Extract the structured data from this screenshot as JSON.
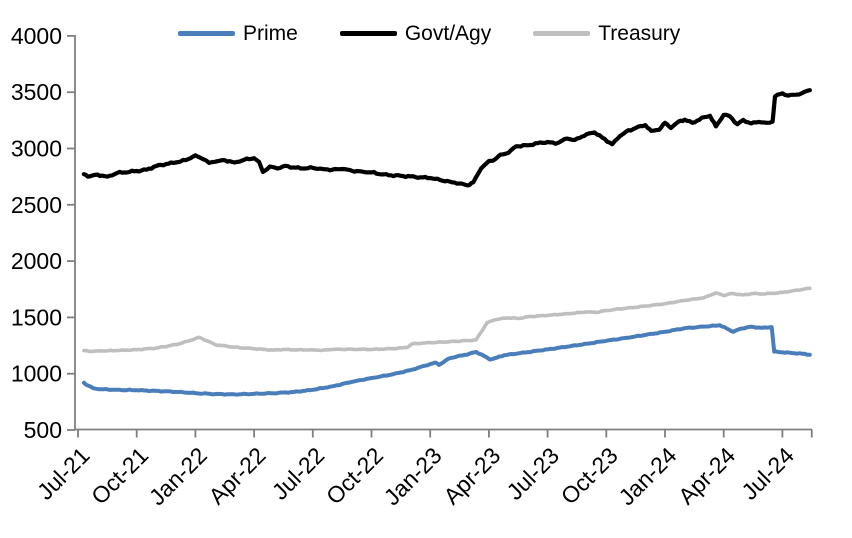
{
  "chart_data": {
    "type": "line",
    "title": "",
    "legend": {
      "position": "top",
      "entries": [
        "Prime",
        "Govt/Agy",
        "Treasury"
      ]
    },
    "x_axis": {
      "label": "",
      "x_unit": "months since Jul-21",
      "tick_labels": [
        "Jul-21",
        "Oct-21",
        "Jan-22",
        "Apr-22",
        "Jul-22",
        "Oct-22",
        "Jan-23",
        "Apr-23",
        "Jul-23",
        "Oct-23",
        "Jan-24",
        "Apr-24",
        "Jul-24"
      ],
      "tick_months": [
        0,
        3,
        6,
        9,
        12,
        15,
        18,
        21,
        24,
        27,
        30,
        33,
        36
      ],
      "end_tick_month": 37.5,
      "label_rotation_deg": -45
    },
    "y_axis": {
      "label": "",
      "min": 500,
      "max": 4000,
      "tick_step": 500,
      "ticks": [
        500,
        1000,
        1500,
        2000,
        2500,
        3000,
        3500,
        4000
      ]
    },
    "colors": {
      "axis": "#7f7f7f",
      "text": "#000000",
      "background": "#ffffff"
    },
    "series": [
      {
        "name": "Prime",
        "color": "#4a7ebb",
        "points": [
          [
            0.3,
            920
          ],
          [
            0.5,
            895
          ],
          [
            0.8,
            870
          ],
          [
            1.2,
            862
          ],
          [
            2,
            857
          ],
          [
            3,
            853
          ],
          [
            4,
            847
          ],
          [
            5,
            839
          ],
          [
            6,
            827
          ],
          [
            7,
            819
          ],
          [
            8,
            816
          ],
          [
            9,
            821
          ],
          [
            10,
            827
          ],
          [
            11,
            837
          ],
          [
            12,
            857
          ],
          [
            13,
            888
          ],
          [
            14,
            927
          ],
          [
            15,
            962
          ],
          [
            16,
            991
          ],
          [
            17,
            1032
          ],
          [
            18,
            1085
          ],
          [
            18.3,
            1098
          ],
          [
            18.45,
            1078
          ],
          [
            19,
            1138
          ],
          [
            20,
            1177
          ],
          [
            20.35,
            1193
          ],
          [
            20.75,
            1158
          ],
          [
            21.05,
            1125
          ],
          [
            21.4,
            1142
          ],
          [
            21.8,
            1165
          ],
          [
            22.5,
            1180
          ],
          [
            23,
            1192
          ],
          [
            24,
            1216
          ],
          [
            25,
            1240
          ],
          [
            26,
            1266
          ],
          [
            27,
            1292
          ],
          [
            28,
            1318
          ],
          [
            29,
            1344
          ],
          [
            30,
            1372
          ],
          [
            31,
            1404
          ],
          [
            32,
            1418
          ],
          [
            32.8,
            1430
          ],
          [
            33.5,
            1372
          ],
          [
            33.8,
            1396
          ],
          [
            34.3,
            1416
          ],
          [
            35,
            1408
          ],
          [
            35.45,
            1414
          ],
          [
            35.58,
            1196
          ],
          [
            36,
            1190
          ],
          [
            36.6,
            1182
          ],
          [
            37,
            1178
          ],
          [
            37.4,
            1168
          ]
        ]
      },
      {
        "name": "Govt/Agy",
        "color": "#000000",
        "points": [
          [
            0.3,
            2772
          ],
          [
            0.6,
            2752
          ],
          [
            1,
            2768
          ],
          [
            1.5,
            2750
          ],
          [
            2,
            2782
          ],
          [
            3,
            2800
          ],
          [
            3.5,
            2812
          ],
          [
            4,
            2845
          ],
          [
            4.5,
            2862
          ],
          [
            5,
            2876
          ],
          [
            5.5,
            2896
          ],
          [
            6,
            2940
          ],
          [
            6.4,
            2905
          ],
          [
            6.7,
            2872
          ],
          [
            7,
            2882
          ],
          [
            7.5,
            2896
          ],
          [
            8,
            2876
          ],
          [
            8.5,
            2900
          ],
          [
            9,
            2914
          ],
          [
            9.25,
            2882
          ],
          [
            9.45,
            2792
          ],
          [
            9.8,
            2840
          ],
          [
            10.2,
            2822
          ],
          [
            10.6,
            2846
          ],
          [
            11,
            2832
          ],
          [
            11.5,
            2822
          ],
          [
            12,
            2828
          ],
          [
            12.5,
            2818
          ],
          [
            13,
            2812
          ],
          [
            13.5,
            2818
          ],
          [
            14,
            2802
          ],
          [
            14.5,
            2796
          ],
          [
            15,
            2788
          ],
          [
            15.5,
            2770
          ],
          [
            16,
            2762
          ],
          [
            16.5,
            2757
          ],
          [
            17,
            2752
          ],
          [
            17.5,
            2744
          ],
          [
            18,
            2738
          ],
          [
            18.5,
            2720
          ],
          [
            19,
            2706
          ],
          [
            19.5,
            2690
          ],
          [
            19.9,
            2672
          ],
          [
            20.2,
            2700
          ],
          [
            20.6,
            2822
          ],
          [
            21,
            2888
          ],
          [
            21.3,
            2902
          ],
          [
            21.6,
            2946
          ],
          [
            22,
            2962
          ],
          [
            22.4,
            3020
          ],
          [
            23,
            3028
          ],
          [
            23.5,
            3048
          ],
          [
            24,
            3058
          ],
          [
            24.4,
            3042
          ],
          [
            25,
            3088
          ],
          [
            25.4,
            3076
          ],
          [
            26,
            3128
          ],
          [
            26.4,
            3142
          ],
          [
            26.8,
            3096
          ],
          [
            27.3,
            3038
          ],
          [
            27.7,
            3110
          ],
          [
            28,
            3148
          ],
          [
            28.5,
            3182
          ],
          [
            29,
            3208
          ],
          [
            29.3,
            3156
          ],
          [
            29.7,
            3166
          ],
          [
            30,
            3228
          ],
          [
            30.3,
            3182
          ],
          [
            30.7,
            3240
          ],
          [
            31,
            3256
          ],
          [
            31.4,
            3228
          ],
          [
            32,
            3278
          ],
          [
            32.3,
            3290
          ],
          [
            32.6,
            3196
          ],
          [
            33,
            3298
          ],
          [
            33.3,
            3288
          ],
          [
            33.7,
            3216
          ],
          [
            34,
            3254
          ],
          [
            34.4,
            3222
          ],
          [
            34.8,
            3236
          ],
          [
            35.2,
            3228
          ],
          [
            35.5,
            3238
          ],
          [
            35.62,
            3462
          ],
          [
            36,
            3490
          ],
          [
            36.3,
            3470
          ],
          [
            36.7,
            3478
          ],
          [
            37,
            3492
          ],
          [
            37.4,
            3518
          ]
        ]
      },
      {
        "name": "Treasury",
        "color": "#bfbfbf",
        "points": [
          [
            0.3,
            1205
          ],
          [
            0.7,
            1198
          ],
          [
            1.2,
            1202
          ],
          [
            2,
            1206
          ],
          [
            3,
            1213
          ],
          [
            4,
            1228
          ],
          [
            5,
            1258
          ],
          [
            5.6,
            1288
          ],
          [
            6,
            1312
          ],
          [
            6.2,
            1322
          ],
          [
            6.6,
            1292
          ],
          [
            7,
            1258
          ],
          [
            8,
            1235
          ],
          [
            9,
            1222
          ],
          [
            9.5,
            1215
          ],
          [
            10,
            1210
          ],
          [
            10.5,
            1216
          ],
          [
            11,
            1211
          ],
          [
            12,
            1212
          ],
          [
            12.5,
            1208
          ],
          [
            13,
            1215
          ],
          [
            14,
            1218
          ],
          [
            15,
            1215
          ],
          [
            16,
            1222
          ],
          [
            16.8,
            1232
          ],
          [
            17.1,
            1266
          ],
          [
            18,
            1275
          ],
          [
            19,
            1285
          ],
          [
            20,
            1295
          ],
          [
            20.35,
            1300
          ],
          [
            20.9,
            1452
          ],
          [
            21.3,
            1478
          ],
          [
            21.7,
            1492
          ],
          [
            22,
            1496
          ],
          [
            22.5,
            1490
          ],
          [
            23,
            1506
          ],
          [
            24,
            1518
          ],
          [
            25,
            1533
          ],
          [
            26,
            1548
          ],
          [
            26.5,
            1544
          ],
          [
            27,
            1562
          ],
          [
            28,
            1581
          ],
          [
            29,
            1600
          ],
          [
            30,
            1622
          ],
          [
            31,
            1650
          ],
          [
            32,
            1676
          ],
          [
            32.6,
            1718
          ],
          [
            33,
            1694
          ],
          [
            33.4,
            1712
          ],
          [
            34,
            1700
          ],
          [
            34.5,
            1712
          ],
          [
            35,
            1708
          ],
          [
            35.5,
            1714
          ],
          [
            36,
            1722
          ],
          [
            36.5,
            1735
          ],
          [
            37,
            1748
          ],
          [
            37.4,
            1758
          ]
        ]
      }
    ]
  }
}
